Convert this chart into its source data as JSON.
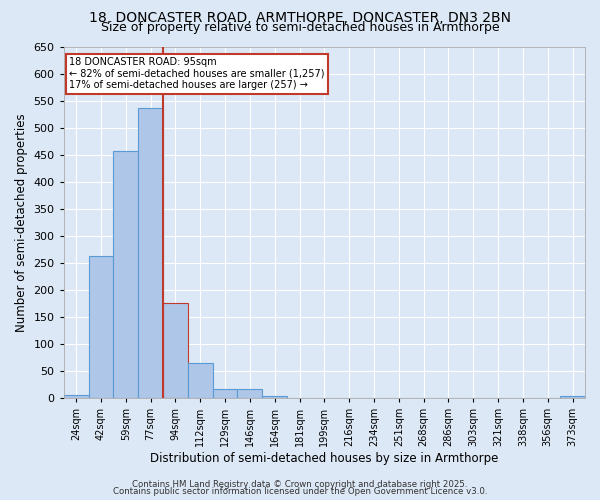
{
  "title1": "18, DONCASTER ROAD, ARMTHORPE, DONCASTER, DN3 2BN",
  "title2": "Size of property relative to semi-detached houses in Armthorpe",
  "xlabel": "Distribution of semi-detached houses by size in Armthorpe",
  "ylabel": "Number of semi-detached properties",
  "footer1": "Contains HM Land Registry data © Crown copyright and database right 2025.",
  "footer2": "Contains public sector information licensed under the Open Government Licence v3.0.",
  "categories": [
    "24sqm",
    "42sqm",
    "59sqm",
    "77sqm",
    "94sqm",
    "112sqm",
    "129sqm",
    "146sqm",
    "164sqm",
    "181sqm",
    "199sqm",
    "216sqm",
    "234sqm",
    "251sqm",
    "268sqm",
    "286sqm",
    "303sqm",
    "321sqm",
    "338sqm",
    "356sqm",
    "373sqm"
  ],
  "values": [
    5,
    262,
    457,
    537,
    175,
    65,
    17,
    17,
    3,
    0,
    0,
    0,
    0,
    0,
    0,
    0,
    0,
    0,
    0,
    0,
    4
  ],
  "bar_color": "#aec6e8",
  "bar_edge_color": "#5b9bd5",
  "highlight_bar_index": 4,
  "highlight_bar_edge_color": "#c0392b",
  "vline_color": "#c0392b",
  "annotation_title": "18 DONCASTER ROAD: 95sqm",
  "annotation_line1": "← 82% of semi-detached houses are smaller (1,257)",
  "annotation_line2": "17% of semi-detached houses are larger (257) →",
  "annotation_box_color": "#c0392b",
  "ylim": [
    0,
    650
  ],
  "yticks": [
    0,
    50,
    100,
    150,
    200,
    250,
    300,
    350,
    400,
    450,
    500,
    550,
    600,
    650
  ],
  "bg_color": "#dce8f5",
  "plot_bg_color": "#dce8f5",
  "grid_color": "#ffffff",
  "title_fontsize": 10,
  "subtitle_fontsize": 9
}
